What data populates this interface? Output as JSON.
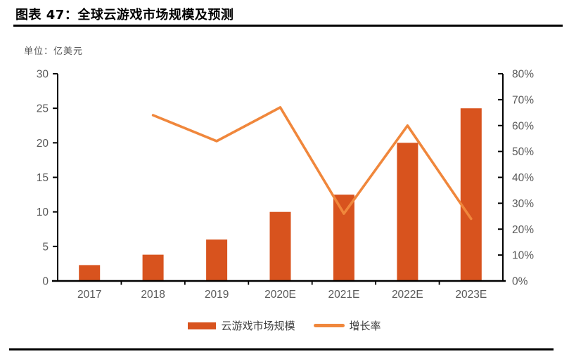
{
  "page": {
    "title": "图表 47：全球云游戏市场规模及预测",
    "unit_label": "单位：亿美元"
  },
  "legend": {
    "bar_label": "云游戏市场规模",
    "line_label": "增长率"
  },
  "colors": {
    "bar": "#D8531E",
    "line": "#F0873C",
    "axis": "#000000",
    "tick_label": "#595959"
  },
  "chart_data": {
    "type": "bar+line combo",
    "title": "全球云游戏市场规模及预测",
    "unit": "亿美元",
    "categories": [
      "2017",
      "2018",
      "2019",
      "2020E",
      "2021E",
      "2022E",
      "2023E"
    ],
    "series": [
      {
        "name": "云游戏市场规模",
        "type": "bar",
        "axis": "left",
        "values": [
          2.3,
          3.8,
          6,
          10,
          12.5,
          20,
          25
        ]
      },
      {
        "name": "增长率",
        "type": "line",
        "axis": "right",
        "suffix": "%",
        "values": [
          null,
          64,
          54,
          67,
          26,
          60,
          24
        ]
      }
    ],
    "y_left": {
      "min": 0,
      "max": 30,
      "step": 5
    },
    "y_right": {
      "min": 0,
      "max": 80,
      "step": 10,
      "suffix": "%"
    },
    "grid": false,
    "legend_position": "bottom"
  }
}
